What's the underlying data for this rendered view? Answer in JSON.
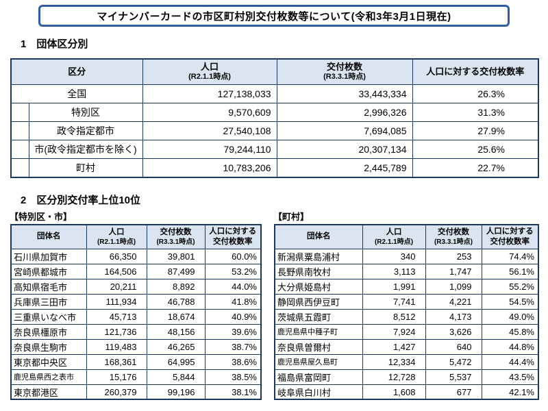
{
  "page": {
    "title": "マイナンバーカードの市区町村別交付枚数等について(令和3年3月1日現在)"
  },
  "colors": {
    "accent_blue": "#2E5DA6",
    "header_bg": "#DBE5F1",
    "table_border": "#17375E"
  },
  "section1": {
    "heading": "1　団体区分別",
    "table": {
      "headers": {
        "category": "区分",
        "population": "人口",
        "population_note": "(R2.1.1時点)",
        "cards": "交付枚数",
        "cards_note": "(R3.3.1時点)",
        "rate": "人口に対する交付枚数率"
      },
      "rows": [
        {
          "name": "全国",
          "indent": false,
          "population": "127,138,033",
          "cards": "33,443,334",
          "rate": "26.3%"
        },
        {
          "name": "特別区",
          "indent": true,
          "population": "9,570,609",
          "cards": "2,996,326",
          "rate": "31.3%"
        },
        {
          "name": "政令指定都市",
          "indent": true,
          "population": "27,540,108",
          "cards": "7,694,085",
          "rate": "27.9%"
        },
        {
          "name": "市(政令指定都市を除く)",
          "indent": true,
          "population": "79,244,110",
          "cards": "20,307,134",
          "rate": "25.6%"
        },
        {
          "name": "町村",
          "indent": true,
          "population": "10,783,206",
          "cards": "2,445,789",
          "rate": "22.7%"
        }
      ]
    }
  },
  "section2": {
    "heading": "2　区分別交付率上位10位",
    "cities": {
      "label": "【特別区・市】",
      "headers": {
        "name": "団体名",
        "population": "人口",
        "population_note": "(R2.1.1時点)",
        "cards": "交付枚数",
        "cards_note": "(R3.3.1時点)",
        "rate_line1": "人口に対する",
        "rate_line2": "交付枚数率"
      },
      "rows": [
        {
          "name": "石川県加賀市",
          "population": "66,350",
          "cards": "39,801",
          "rate": "60.0%"
        },
        {
          "name": "宮崎県都城市",
          "population": "164,506",
          "cards": "87,499",
          "rate": "53.2%"
        },
        {
          "name": "高知県宿毛市",
          "population": "20,211",
          "cards": "8,892",
          "rate": "44.0%"
        },
        {
          "name": "兵庫県三田市",
          "population": "111,934",
          "cards": "46,788",
          "rate": "41.8%"
        },
        {
          "name": "三重県いなべ市",
          "population": "45,713",
          "cards": "18,674",
          "rate": "40.9%"
        },
        {
          "name": "奈良県橿原市",
          "population": "121,736",
          "cards": "48,156",
          "rate": "39.6%"
        },
        {
          "name": "奈良県生駒市",
          "population": "119,483",
          "cards": "46,265",
          "rate": "38.7%"
        },
        {
          "name": "東京都中央区",
          "population": "168,361",
          "cards": "64,995",
          "rate": "38.6%"
        },
        {
          "name": "鹿児島県西之表市",
          "population": "15,176",
          "cards": "5,844",
          "rate": "38.5%"
        },
        {
          "name": "東京都港区",
          "population": "260,379",
          "cards": "99,196",
          "rate": "38.1%"
        }
      ]
    },
    "towns": {
      "label": "【町村】",
      "headers": {
        "name": "団体名",
        "population": "人口",
        "population_note": "(R2.1.1時点)",
        "cards": "交付枚数",
        "cards_note": "(R3.3.1時点)",
        "rate_line1": "人口に対する",
        "rate_line2": "交付枚数率"
      },
      "rows": [
        {
          "name": "新潟県粟島浦村",
          "population": "340",
          "cards": "253",
          "rate": "74.4%"
        },
        {
          "name": "長野県南牧村",
          "population": "3,113",
          "cards": "1,747",
          "rate": "56.1%"
        },
        {
          "name": "大分県姫島村",
          "population": "1,991",
          "cards": "1,099",
          "rate": "55.2%"
        },
        {
          "name": "静岡県西伊豆町",
          "population": "7,741",
          "cards": "4,221",
          "rate": "54.5%"
        },
        {
          "name": "茨城県五霞町",
          "population": "8,512",
          "cards": "4,173",
          "rate": "49.0%"
        },
        {
          "name": "鹿児島県中種子町",
          "population": "7,924",
          "cards": "3,626",
          "rate": "45.8%"
        },
        {
          "name": "奈良県曽爾村",
          "population": "1,427",
          "cards": "640",
          "rate": "44.8%"
        },
        {
          "name": "鹿児島県屋久島町",
          "population": "12,334",
          "cards": "5,472",
          "rate": "44.4%"
        },
        {
          "name": "福島県富岡町",
          "population": "12,728",
          "cards": "5,537",
          "rate": "43.5%"
        },
        {
          "name": "岐阜県白川村",
          "population": "1,608",
          "cards": "677",
          "rate": "42.1%"
        }
      ]
    }
  }
}
